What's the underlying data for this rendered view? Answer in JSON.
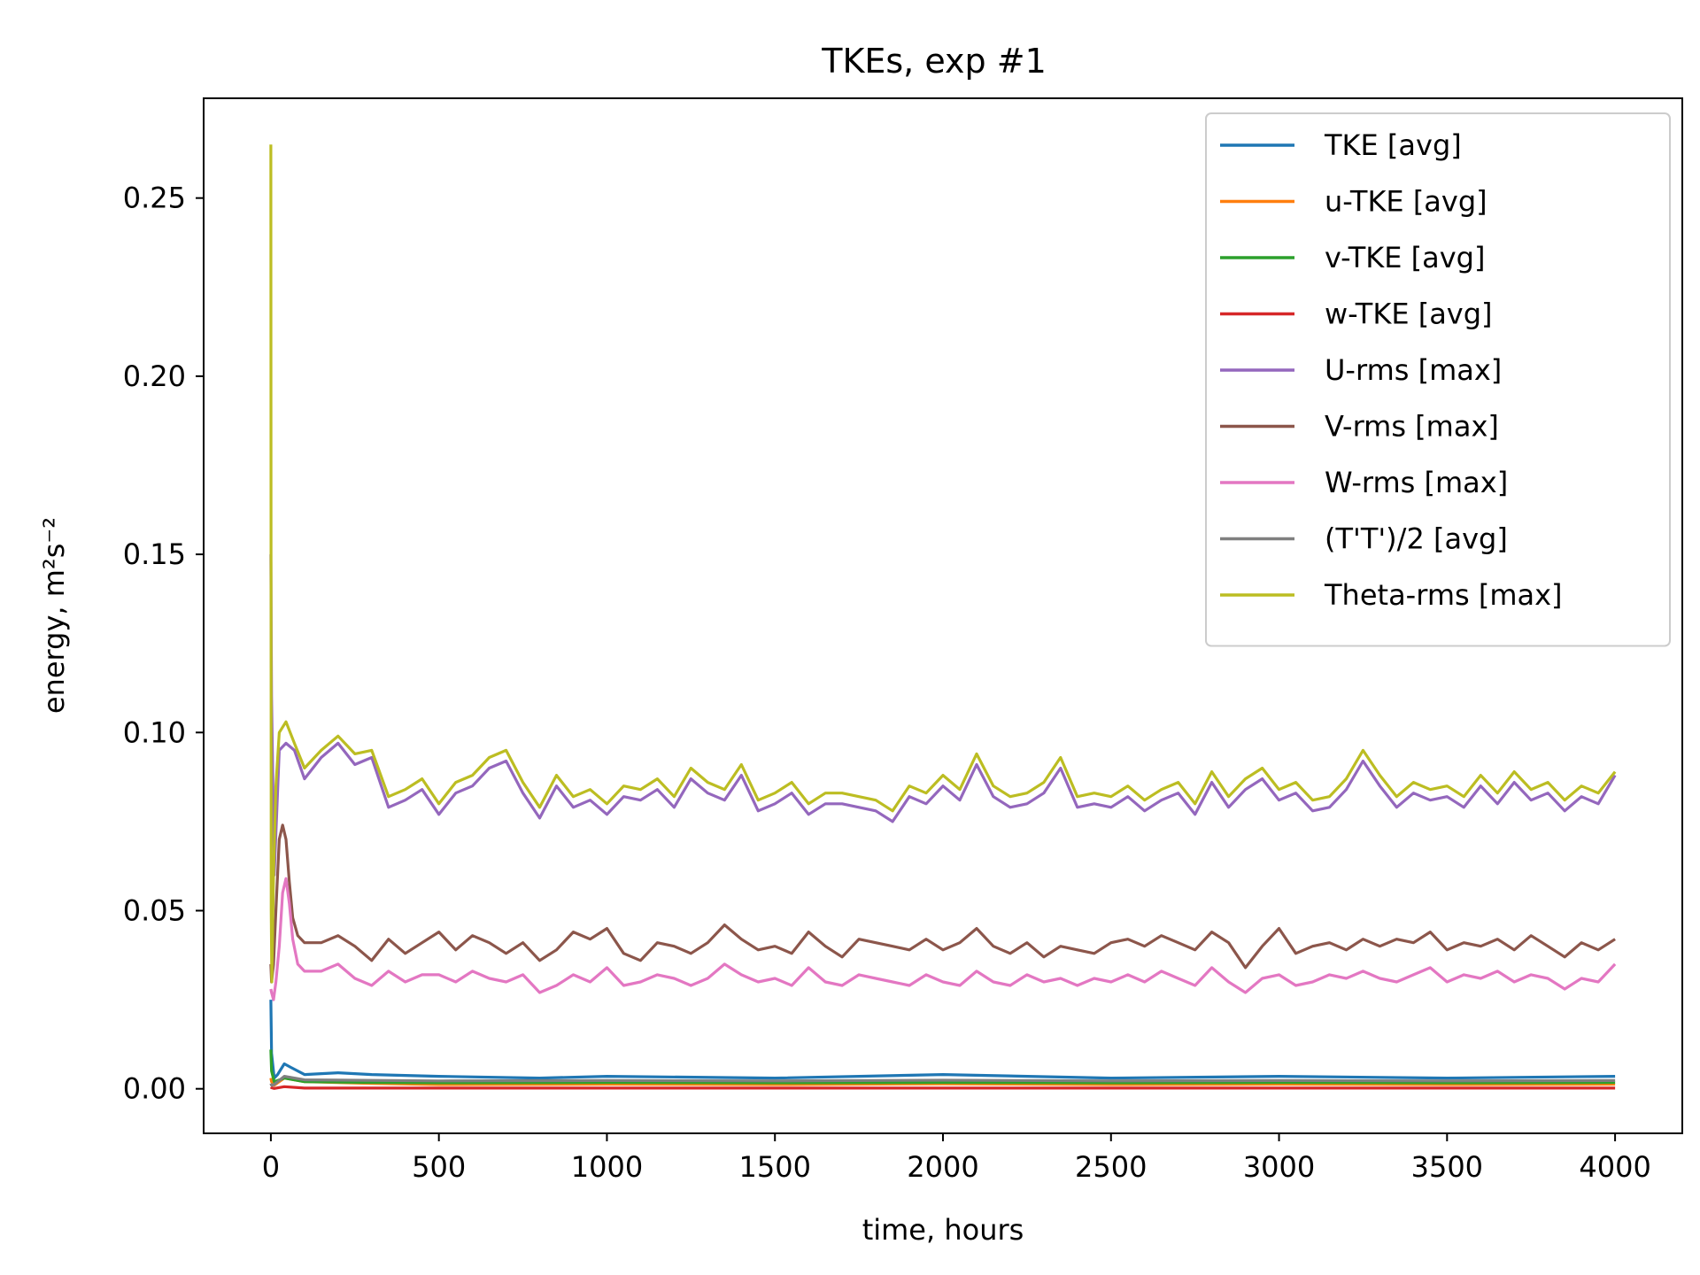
{
  "chart_data": {
    "type": "line",
    "title": "TKEs, exp #1",
    "xlabel": "time, hours",
    "ylabel": "energy, m²s⁻²",
    "xlim": [
      -200,
      4200
    ],
    "ylim": [
      -0.0125,
      0.278
    ],
    "xticks": [
      0,
      500,
      1000,
      1500,
      2000,
      2500,
      3000,
      3500,
      4000
    ],
    "xtick_labels": [
      "0",
      "500",
      "1000",
      "1500",
      "2000",
      "2500",
      "3000",
      "3500",
      "4000"
    ],
    "yticks": [
      0.0,
      0.05,
      0.1,
      0.15,
      0.2,
      0.25
    ],
    "ytick_labels": [
      "0.00",
      "0.05",
      "0.10",
      "0.15",
      "0.20",
      "0.25"
    ],
    "grid": false,
    "legend_position": "top-right",
    "series": [
      {
        "name": "TKE [avg]",
        "color": "#1f77b4",
        "x": [
          0,
          2,
          10,
          20,
          40,
          60,
          100,
          200,
          300,
          500,
          800,
          1000,
          1500,
          2000,
          2500,
          3000,
          3500,
          4000
        ],
        "y": [
          0.025,
          0.01,
          0.003,
          0.004,
          0.007,
          0.006,
          0.004,
          0.0045,
          0.004,
          0.0035,
          0.003,
          0.0035,
          0.003,
          0.004,
          0.003,
          0.0035,
          0.003,
          0.0035
        ]
      },
      {
        "name": "u-TKE [avg]",
        "color": "#ff7f0e",
        "x": [
          0,
          2,
          10,
          40,
          100,
          300,
          500,
          1000,
          1500,
          2000,
          2500,
          3000,
          3500,
          4000
        ],
        "y": [
          0.003,
          0.002,
          0.001,
          0.003,
          0.002,
          0.0015,
          0.0012,
          0.0013,
          0.0012,
          0.0014,
          0.0012,
          0.0013,
          0.0012,
          0.0013
        ]
      },
      {
        "name": "v-TKE [avg]",
        "color": "#2ca02c",
        "x": [
          0,
          2,
          10,
          40,
          100,
          300,
          500,
          1000,
          1500,
          2000,
          2500,
          3000,
          3500,
          4000
        ],
        "y": [
          0.011,
          0.005,
          0.002,
          0.003,
          0.002,
          0.0018,
          0.0017,
          0.0018,
          0.0017,
          0.0018,
          0.0017,
          0.0018,
          0.0017,
          0.0018
        ]
      },
      {
        "name": "w-TKE [avg]",
        "color": "#d62728",
        "x": [
          0,
          2,
          10,
          40,
          100,
          500,
          1000,
          2000,
          3000,
          4000
        ],
        "y": [
          0.0005,
          0.0003,
          0.0001,
          0.0006,
          0.0002,
          0.0002,
          0.0002,
          0.0002,
          0.0002,
          0.0002
        ]
      },
      {
        "name": "U-rms [max]",
        "color": "#9467bd",
        "x": [
          0,
          2,
          10,
          25,
          45,
          70,
          100,
          150,
          200,
          250,
          300,
          350,
          400,
          450,
          500,
          550,
          600,
          650,
          700,
          750,
          800,
          850,
          900,
          950,
          1000,
          1050,
          1100,
          1150,
          1200,
          1250,
          1300,
          1350,
          1400,
          1450,
          1500,
          1550,
          1600,
          1650,
          1700,
          1750,
          1800,
          1850,
          1900,
          1950,
          2000,
          2050,
          2100,
          2150,
          2200,
          2250,
          2300,
          2350,
          2400,
          2450,
          2500,
          2550,
          2600,
          2650,
          2700,
          2750,
          2800,
          2850,
          2900,
          2950,
          3000,
          3050,
          3100,
          3150,
          3200,
          3250,
          3300,
          3350,
          3400,
          3450,
          3500,
          3550,
          3600,
          3650,
          3700,
          3750,
          3800,
          3850,
          3900,
          3950,
          4000
        ],
        "y": [
          0.15,
          0.11,
          0.06,
          0.095,
          0.097,
          0.095,
          0.087,
          0.093,
          0.097,
          0.091,
          0.093,
          0.079,
          0.081,
          0.084,
          0.077,
          0.083,
          0.085,
          0.09,
          0.092,
          0.083,
          0.076,
          0.085,
          0.079,
          0.081,
          0.077,
          0.082,
          0.081,
          0.084,
          0.079,
          0.087,
          0.083,
          0.081,
          0.088,
          0.078,
          0.08,
          0.083,
          0.077,
          0.08,
          0.08,
          0.079,
          0.078,
          0.075,
          0.082,
          0.08,
          0.085,
          0.081,
          0.091,
          0.082,
          0.079,
          0.08,
          0.083,
          0.09,
          0.079,
          0.08,
          0.079,
          0.082,
          0.078,
          0.081,
          0.083,
          0.077,
          0.086,
          0.079,
          0.084,
          0.087,
          0.081,
          0.083,
          0.078,
          0.079,
          0.084,
          0.092,
          0.085,
          0.079,
          0.083,
          0.081,
          0.082,
          0.079,
          0.085,
          0.08,
          0.086,
          0.081,
          0.083,
          0.078,
          0.082,
          0.08,
          0.088
        ]
      },
      {
        "name": "V-rms [max]",
        "color": "#8c564b",
        "x": [
          0,
          2,
          8,
          15,
          25,
          35,
          45,
          55,
          65,
          80,
          100,
          150,
          200,
          250,
          300,
          350,
          400,
          450,
          500,
          550,
          600,
          650,
          700,
          750,
          800,
          850,
          900,
          950,
          1000,
          1050,
          1100,
          1150,
          1200,
          1250,
          1300,
          1350,
          1400,
          1450,
          1500,
          1550,
          1600,
          1650,
          1700,
          1750,
          1800,
          1850,
          1900,
          1950,
          2000,
          2050,
          2100,
          2150,
          2200,
          2250,
          2300,
          2350,
          2400,
          2450,
          2500,
          2550,
          2600,
          2650,
          2700,
          2750,
          2800,
          2850,
          2900,
          2950,
          3000,
          3050,
          3100,
          3150,
          3200,
          3250,
          3300,
          3350,
          3400,
          3450,
          3500,
          3550,
          3600,
          3650,
          3700,
          3750,
          3800,
          3850,
          3900,
          3950,
          4000
        ],
        "y": [
          0.035,
          0.03,
          0.035,
          0.05,
          0.07,
          0.074,
          0.07,
          0.058,
          0.048,
          0.043,
          0.041,
          0.041,
          0.043,
          0.04,
          0.036,
          0.042,
          0.038,
          0.041,
          0.044,
          0.039,
          0.043,
          0.041,
          0.038,
          0.041,
          0.036,
          0.039,
          0.044,
          0.042,
          0.045,
          0.038,
          0.036,
          0.041,
          0.04,
          0.038,
          0.041,
          0.046,
          0.042,
          0.039,
          0.04,
          0.038,
          0.044,
          0.04,
          0.037,
          0.042,
          0.041,
          0.04,
          0.039,
          0.042,
          0.039,
          0.041,
          0.045,
          0.04,
          0.038,
          0.041,
          0.037,
          0.04,
          0.039,
          0.038,
          0.041,
          0.042,
          0.04,
          0.043,
          0.041,
          0.039,
          0.044,
          0.041,
          0.034,
          0.04,
          0.045,
          0.038,
          0.04,
          0.041,
          0.039,
          0.042,
          0.04,
          0.042,
          0.041,
          0.044,
          0.039,
          0.041,
          0.04,
          0.042,
          0.039,
          0.043,
          0.04,
          0.037,
          0.041,
          0.039,
          0.042
        ]
      },
      {
        "name": "W-rms [max]",
        "color": "#e377c2",
        "x": [
          0,
          2,
          8,
          15,
          25,
          35,
          45,
          55,
          65,
          80,
          100,
          150,
          200,
          250,
          300,
          350,
          400,
          450,
          500,
          550,
          600,
          650,
          700,
          750,
          800,
          850,
          900,
          950,
          1000,
          1050,
          1100,
          1150,
          1200,
          1250,
          1300,
          1350,
          1400,
          1450,
          1500,
          1550,
          1600,
          1650,
          1700,
          1750,
          1800,
          1850,
          1900,
          1950,
          2000,
          2050,
          2100,
          2150,
          2200,
          2250,
          2300,
          2350,
          2400,
          2450,
          2500,
          2550,
          2600,
          2650,
          2700,
          2750,
          2800,
          2850,
          2900,
          2950,
          3000,
          3050,
          3100,
          3150,
          3200,
          3250,
          3300,
          3350,
          3400,
          3450,
          3500,
          3550,
          3600,
          3650,
          3700,
          3750,
          3800,
          3850,
          3900,
          3950,
          4000
        ],
        "y": [
          0.028,
          0.027,
          0.025,
          0.03,
          0.04,
          0.055,
          0.059,
          0.052,
          0.042,
          0.035,
          0.033,
          0.033,
          0.035,
          0.031,
          0.029,
          0.033,
          0.03,
          0.032,
          0.032,
          0.03,
          0.033,
          0.031,
          0.03,
          0.032,
          0.027,
          0.029,
          0.032,
          0.03,
          0.034,
          0.029,
          0.03,
          0.032,
          0.031,
          0.029,
          0.031,
          0.035,
          0.032,
          0.03,
          0.031,
          0.029,
          0.034,
          0.03,
          0.029,
          0.032,
          0.031,
          0.03,
          0.029,
          0.032,
          0.03,
          0.029,
          0.033,
          0.03,
          0.029,
          0.032,
          0.03,
          0.031,
          0.029,
          0.031,
          0.03,
          0.032,
          0.03,
          0.033,
          0.031,
          0.029,
          0.034,
          0.03,
          0.027,
          0.031,
          0.032,
          0.029,
          0.03,
          0.032,
          0.031,
          0.033,
          0.031,
          0.03,
          0.032,
          0.034,
          0.03,
          0.032,
          0.031,
          0.033,
          0.03,
          0.032,
          0.031,
          0.028,
          0.031,
          0.03,
          0.035
        ]
      },
      {
        "name": "(T'T')/2 [avg]",
        "color": "#7f7f7f",
        "x": [
          0,
          2,
          10,
          40,
          100,
          500,
          1000,
          1500,
          2000,
          2500,
          3000,
          3500,
          4000
        ],
        "y": [
          0.0015,
          0.001,
          0.0012,
          0.0035,
          0.0025,
          0.0022,
          0.0023,
          0.0022,
          0.0024,
          0.0022,
          0.0023,
          0.0022,
          0.0023
        ]
      },
      {
        "name": "Theta-rms [max]",
        "color": "#bcbd22",
        "x": [
          0,
          1,
          3,
          8,
          15,
          25,
          45,
          70,
          100,
          150,
          200,
          250,
          300,
          350,
          400,
          450,
          500,
          550,
          600,
          650,
          700,
          750,
          800,
          850,
          900,
          950,
          1000,
          1050,
          1100,
          1150,
          1200,
          1250,
          1300,
          1350,
          1400,
          1450,
          1500,
          1550,
          1600,
          1650,
          1700,
          1750,
          1800,
          1850,
          1900,
          1950,
          2000,
          2050,
          2100,
          2150,
          2200,
          2250,
          2300,
          2350,
          2400,
          2450,
          2500,
          2550,
          2600,
          2650,
          2700,
          2750,
          2800,
          2850,
          2900,
          2950,
          3000,
          3050,
          3100,
          3150,
          3200,
          3250,
          3300,
          3350,
          3400,
          3450,
          3500,
          3550,
          3600,
          3650,
          3700,
          3750,
          3800,
          3850,
          3900,
          3950,
          4000
        ],
        "y": [
          0.265,
          0.05,
          0.03,
          0.06,
          0.085,
          0.1,
          0.103,
          0.097,
          0.09,
          0.095,
          0.099,
          0.094,
          0.095,
          0.082,
          0.084,
          0.087,
          0.08,
          0.086,
          0.088,
          0.093,
          0.095,
          0.086,
          0.079,
          0.088,
          0.082,
          0.084,
          0.08,
          0.085,
          0.084,
          0.087,
          0.082,
          0.09,
          0.086,
          0.084,
          0.091,
          0.081,
          0.083,
          0.086,
          0.08,
          0.083,
          0.083,
          0.082,
          0.081,
          0.078,
          0.085,
          0.083,
          0.088,
          0.084,
          0.094,
          0.085,
          0.082,
          0.083,
          0.086,
          0.093,
          0.082,
          0.083,
          0.082,
          0.085,
          0.081,
          0.084,
          0.086,
          0.08,
          0.089,
          0.082,
          0.087,
          0.09,
          0.084,
          0.086,
          0.081,
          0.082,
          0.087,
          0.095,
          0.088,
          0.082,
          0.086,
          0.084,
          0.085,
          0.082,
          0.088,
          0.083,
          0.089,
          0.084,
          0.086,
          0.081,
          0.085,
          0.083,
          0.089
        ]
      }
    ]
  }
}
